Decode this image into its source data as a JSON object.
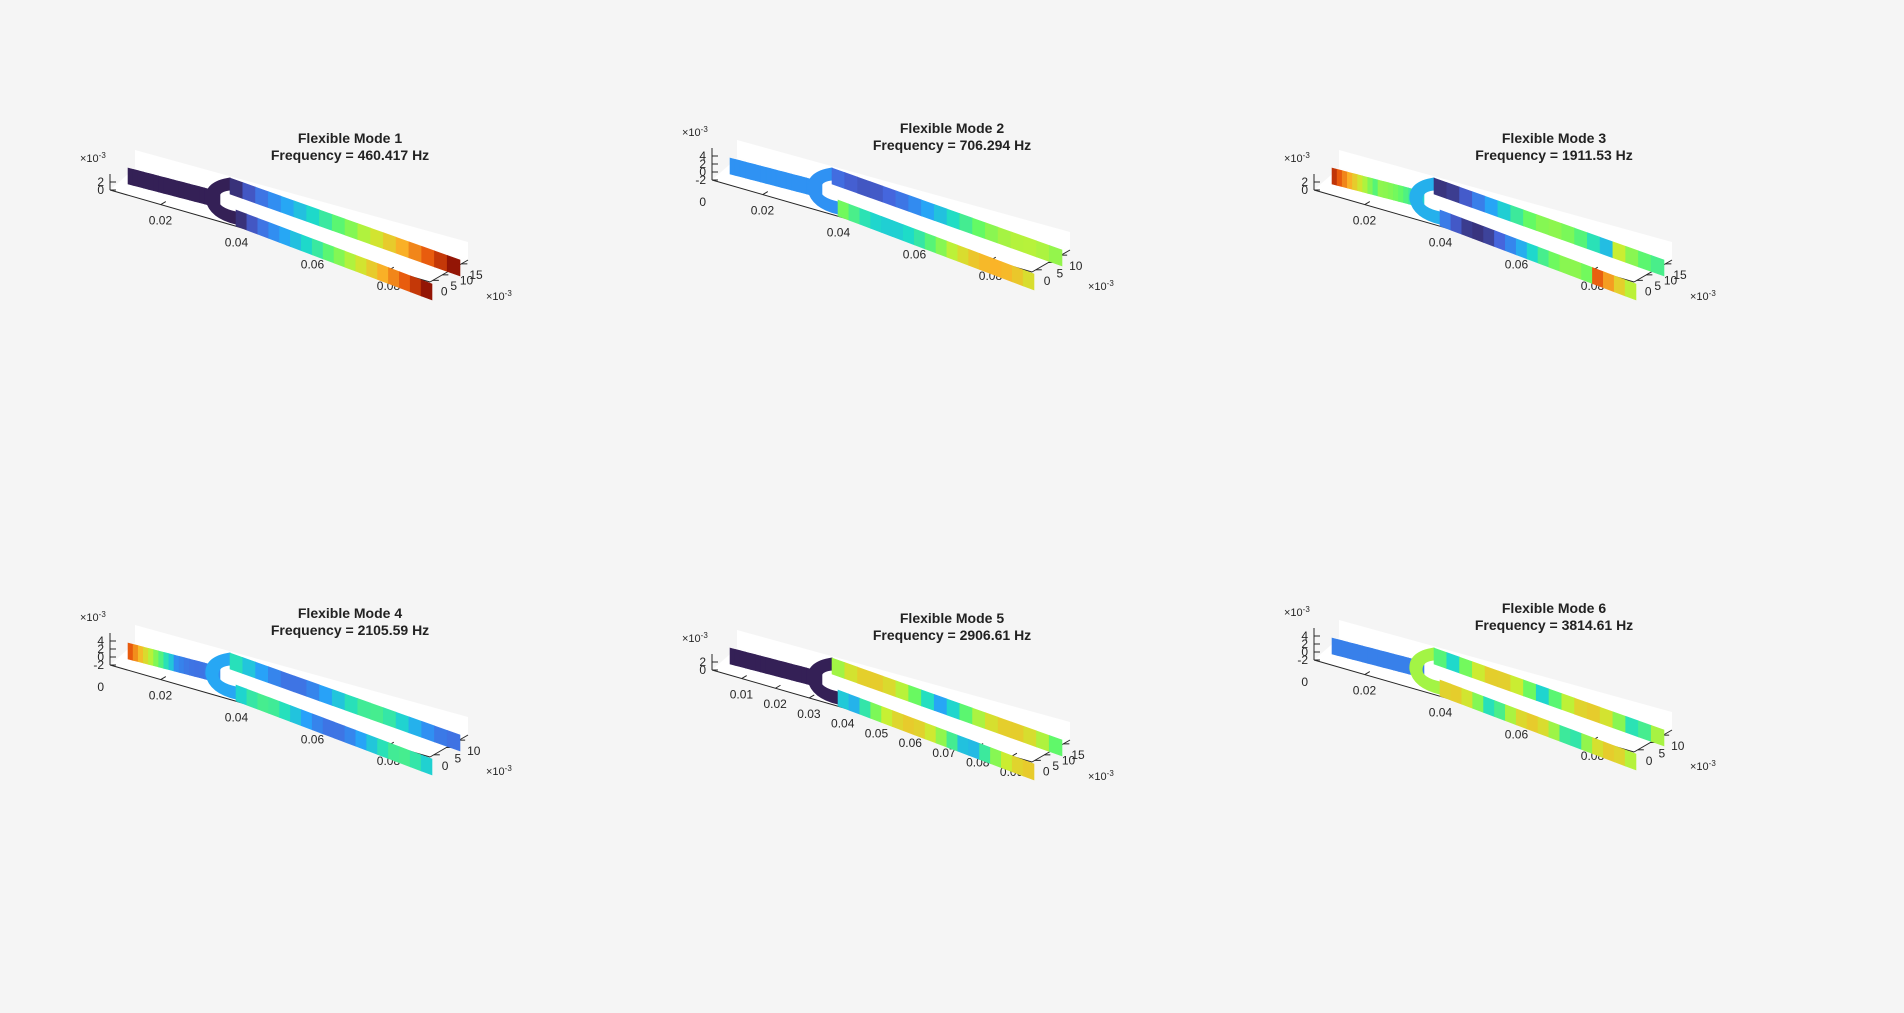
{
  "chart_data": [
    {
      "type": "surface",
      "title": "Flexible Mode 1",
      "subtitle": "Frequency = 460.417 Hz",
      "x_ticks": [
        "0.02",
        "0.04",
        "0.06",
        "0.08"
      ],
      "y_ticks": [
        "0",
        "5",
        "10",
        "15"
      ],
      "z_ticks": [
        "0",
        "2"
      ],
      "x_exponent": "",
      "y_exponent": "×10",
      "y_exponent_power": "-3",
      "z_exponent": "×10",
      "z_exponent_power": "-3",
      "colormap": "turbo",
      "mode": 1
    },
    {
      "type": "surface",
      "title": "Flexible Mode 2",
      "subtitle": "Frequency = 706.294 Hz",
      "x_ticks": [
        "0.02",
        "0.04",
        "0.06",
        "0.08"
      ],
      "y_ticks": [
        "0",
        "5",
        "10"
      ],
      "z_ticks": [
        "-2",
        "0",
        "2",
        "4"
      ],
      "z_bottom_tick": "0",
      "y_exponent": "×10",
      "y_exponent_power": "-3",
      "z_exponent": "×10",
      "z_exponent_power": "-3",
      "colormap": "turbo",
      "mode": 2
    },
    {
      "type": "surface",
      "title": "Flexible Mode 3",
      "subtitle": "Frequency = 1911.53 Hz",
      "x_ticks": [
        "0.02",
        "0.04",
        "0.06",
        "0.08"
      ],
      "y_ticks": [
        "0",
        "5",
        "10",
        "15"
      ],
      "z_ticks": [
        "0",
        "2"
      ],
      "y_exponent": "×10",
      "y_exponent_power": "-3",
      "z_exponent": "×10",
      "z_exponent_power": "-3",
      "colormap": "turbo",
      "mode": 3
    },
    {
      "type": "surface",
      "title": "Flexible Mode 4",
      "subtitle": "Frequency = 2105.59 Hz",
      "x_ticks": [
        "0.02",
        "0.04",
        "0.06",
        "0.08"
      ],
      "y_ticks": [
        "0",
        "5",
        "10"
      ],
      "z_ticks": [
        "-2",
        "0",
        "2",
        "4"
      ],
      "z_bottom_tick": "0",
      "y_exponent": "×10",
      "y_exponent_power": "-3",
      "z_exponent": "×10",
      "z_exponent_power": "-3",
      "colormap": "turbo",
      "mode": 4
    },
    {
      "type": "surface",
      "title": "Flexible Mode 5",
      "subtitle": "Frequency = 2906.61 Hz",
      "x_ticks": [
        "0.01",
        "0.02",
        "0.03",
        "0.04",
        "0.05",
        "0.06",
        "0.07",
        "0.08",
        "0.09"
      ],
      "y_ticks": [
        "0",
        "5",
        "10",
        "15"
      ],
      "z_ticks": [
        "0",
        "2"
      ],
      "y_exponent": "×10",
      "y_exponent_power": "-3",
      "z_exponent": "×10",
      "z_exponent_power": "-3",
      "colormap": "turbo",
      "mode": 5
    },
    {
      "type": "surface",
      "title": "Flexible Mode 6",
      "subtitle": "Frequency = 3814.61 Hz",
      "x_ticks": [
        "0.02",
        "0.04",
        "0.06",
        "0.08"
      ],
      "y_ticks": [
        "0",
        "5",
        "10"
      ],
      "z_ticks": [
        "-2",
        "0",
        "2",
        "4"
      ],
      "z_bottom_tick": "0",
      "y_exponent": "×10",
      "y_exponent_power": "-3",
      "z_exponent": "×10",
      "z_exponent_power": "-3",
      "colormap": "turbo",
      "mode": 6
    }
  ]
}
